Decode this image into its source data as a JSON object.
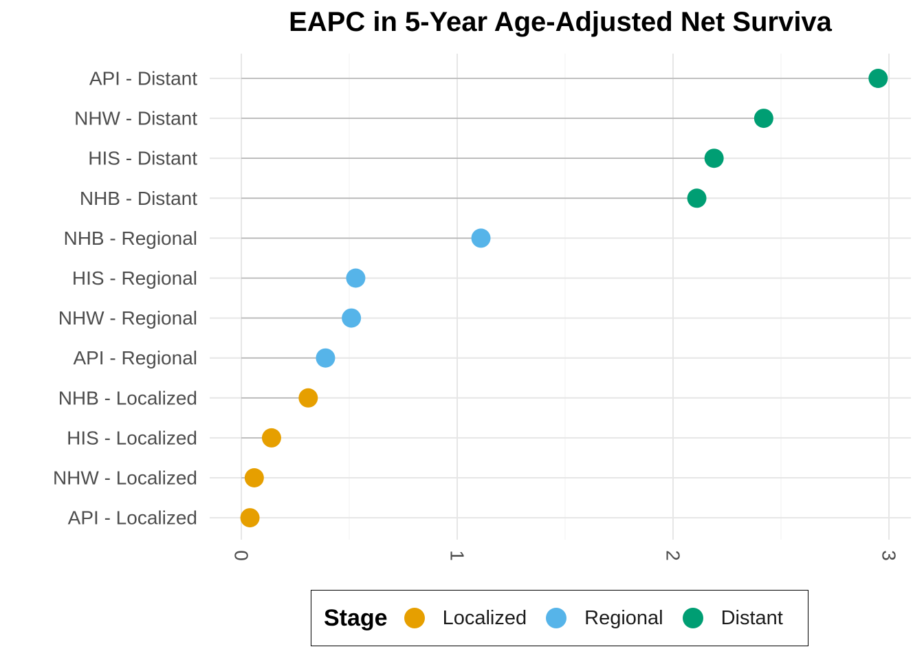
{
  "chart_data": {
    "type": "lollipop",
    "title": "EAPC in 5-Year Age-Adjusted Net Surviva",
    "xlabel": "",
    "ylabel": "",
    "xlim": [
      0,
      3
    ],
    "x_ticks": [
      "0",
      "1",
      "2",
      "3"
    ],
    "grid": true,
    "legend": {
      "title": "Stage",
      "position": "bottom",
      "entries": [
        "Localized",
        "Regional",
        "Distant"
      ]
    },
    "colors": {
      "Localized": "#E69F00",
      "Regional": "#56B4E9",
      "Distant": "#009E73"
    },
    "categories": [
      "API - Distant",
      "NHW - Distant",
      "HIS - Distant",
      "NHB - Distant",
      "NHB - Regional",
      "HIS - Regional",
      "NHW - Regional",
      "API - Regional",
      "NHB - Localized",
      "HIS - Localized",
      "NHW - Localized",
      "API - Localized"
    ],
    "points": [
      {
        "label": "API - Distant",
        "stage": "Distant",
        "value": 2.95
      },
      {
        "label": "NHW - Distant",
        "stage": "Distant",
        "value": 2.42
      },
      {
        "label": "HIS - Distant",
        "stage": "Distant",
        "value": 2.19
      },
      {
        "label": "NHB - Distant",
        "stage": "Distant",
        "value": 2.11
      },
      {
        "label": "NHB - Regional",
        "stage": "Regional",
        "value": 1.11
      },
      {
        "label": "HIS - Regional",
        "stage": "Regional",
        "value": 0.53
      },
      {
        "label": "NHW - Regional",
        "stage": "Regional",
        "value": 0.51
      },
      {
        "label": "API - Regional",
        "stage": "Regional",
        "value": 0.39
      },
      {
        "label": "NHB - Localized",
        "stage": "Localized",
        "value": 0.31
      },
      {
        "label": "HIS - Localized",
        "stage": "Localized",
        "value": 0.14
      },
      {
        "label": "NHW - Localized",
        "stage": "Localized",
        "value": 0.06
      },
      {
        "label": "API - Localized",
        "stage": "Localized",
        "value": 0.04
      }
    ]
  }
}
